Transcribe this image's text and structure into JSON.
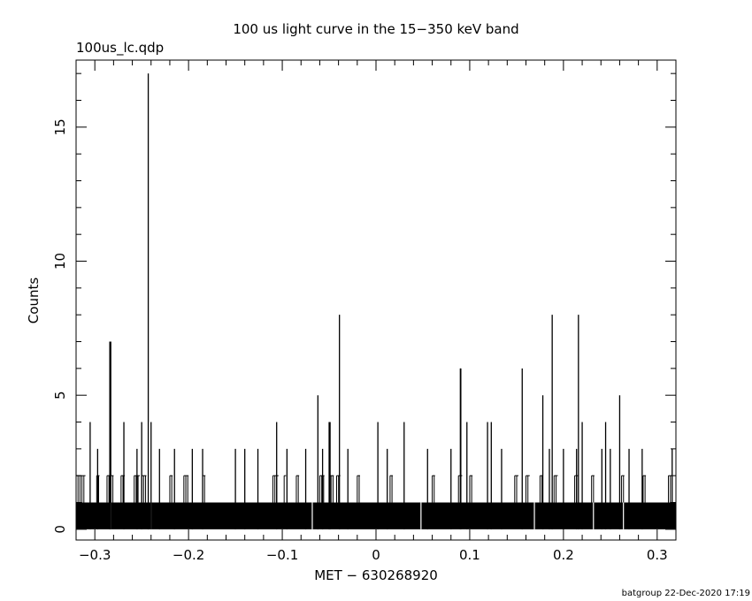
{
  "header": {
    "file_label": "100us_lc.qdp",
    "footer": "batgroup 22-Dec-2020 17:19"
  },
  "chart_data": {
    "type": "bar",
    "title": "100 us light curve in the 15−350 keV band",
    "xlabel": "MET − 630268920",
    "ylabel": "Counts",
    "xlim": [
      -0.32,
      0.32
    ],
    "ylim": [
      -0.4,
      17.5
    ],
    "x_ticks": [
      -0.3,
      -0.2,
      -0.1,
      0,
      0.1,
      0.2,
      0.3
    ],
    "x_tick_labels": [
      "−0.3",
      "−0.2",
      "−0.1",
      "0",
      "0.1",
      "0.2",
      "0.3"
    ],
    "y_ticks": [
      0,
      5,
      10,
      15
    ],
    "y_tick_labels": [
      "0",
      "5",
      "10",
      "15"
    ],
    "bin_width": 0.0001,
    "baseline": {
      "range": [
        -0.32,
        0.32
      ],
      "level": 1
    },
    "gaps_zero_counts": [
      -0.283,
      -0.24,
      -0.068,
      0.048,
      0.169,
      0.232,
      0.264
    ],
    "two_count_regions": [
      [
        -0.32,
        -0.31
      ],
      [
        -0.298,
        -0.295
      ],
      [
        -0.287,
        -0.28
      ],
      [
        -0.272,
        -0.268
      ],
      [
        -0.258,
        -0.252
      ],
      [
        -0.25,
        -0.245
      ],
      [
        -0.22,
        -0.217
      ],
      [
        -0.205,
        -0.2
      ],
      [
        -0.185,
        -0.182
      ],
      [
        -0.11,
        -0.104
      ],
      [
        -0.098,
        -0.096
      ],
      [
        -0.085,
        -0.082
      ],
      [
        -0.06,
        -0.055
      ],
      [
        -0.05,
        -0.045
      ],
      [
        -0.042,
        -0.038
      ],
      [
        -0.02,
        -0.017
      ],
      [
        0.015,
        0.018
      ],
      [
        0.06,
        0.063
      ],
      [
        0.088,
        0.092
      ],
      [
        0.1,
        0.103
      ],
      [
        0.148,
        0.152
      ],
      [
        0.16,
        0.164
      ],
      [
        0.175,
        0.178
      ],
      [
        0.19,
        0.194
      ],
      [
        0.212,
        0.216
      ],
      [
        0.23,
        0.233
      ],
      [
        0.262,
        0.265
      ],
      [
        0.285,
        0.288
      ],
      [
        0.312,
        0.315
      ]
    ],
    "peaks": [
      {
        "x": -0.243,
        "y": 17
      },
      {
        "x": -0.284,
        "y": 7
      },
      {
        "x": -0.283,
        "y": 7
      },
      {
        "x": -0.062,
        "y": 5
      },
      {
        "x": -0.05,
        "y": 4
      },
      {
        "x": -0.049,
        "y": 4
      },
      {
        "x": -0.039,
        "y": 8
      },
      {
        "x": 0.09,
        "y": 6
      },
      {
        "x": 0.0905,
        "y": 6
      },
      {
        "x": 0.156,
        "y": 6
      },
      {
        "x": 0.178,
        "y": 5
      },
      {
        "x": 0.188,
        "y": 8
      },
      {
        "x": 0.216,
        "y": 8
      },
      {
        "x": 0.26,
        "y": 5
      },
      {
        "x": -0.305,
        "y": 4
      },
      {
        "x": -0.297,
        "y": 3
      },
      {
        "x": -0.269,
        "y": 4
      },
      {
        "x": -0.255,
        "y": 3
      },
      {
        "x": -0.25,
        "y": 4
      },
      {
        "x": -0.24,
        "y": 4
      },
      {
        "x": -0.231,
        "y": 3
      },
      {
        "x": -0.215,
        "y": 3
      },
      {
        "x": -0.196,
        "y": 3
      },
      {
        "x": -0.185,
        "y": 3
      },
      {
        "x": -0.15,
        "y": 3
      },
      {
        "x": -0.14,
        "y": 3
      },
      {
        "x": -0.126,
        "y": 3
      },
      {
        "x": -0.106,
        "y": 4
      },
      {
        "x": -0.095,
        "y": 3
      },
      {
        "x": -0.075,
        "y": 3
      },
      {
        "x": -0.057,
        "y": 3
      },
      {
        "x": -0.03,
        "y": 3
      },
      {
        "x": 0.002,
        "y": 4
      },
      {
        "x": 0.012,
        "y": 3
      },
      {
        "x": 0.03,
        "y": 4
      },
      {
        "x": 0.055,
        "y": 3
      },
      {
        "x": 0.08,
        "y": 3
      },
      {
        "x": 0.097,
        "y": 4
      },
      {
        "x": 0.119,
        "y": 4
      },
      {
        "x": 0.123,
        "y": 4
      },
      {
        "x": 0.134,
        "y": 3
      },
      {
        "x": 0.185,
        "y": 3
      },
      {
        "x": 0.2,
        "y": 3
      },
      {
        "x": 0.214,
        "y": 3
      },
      {
        "x": 0.22,
        "y": 4
      },
      {
        "x": 0.241,
        "y": 3
      },
      {
        "x": 0.245,
        "y": 4
      },
      {
        "x": 0.25,
        "y": 3
      },
      {
        "x": 0.27,
        "y": 3
      },
      {
        "x": 0.284,
        "y": 3
      },
      {
        "x": 0.316,
        "y": 3
      }
    ]
  }
}
